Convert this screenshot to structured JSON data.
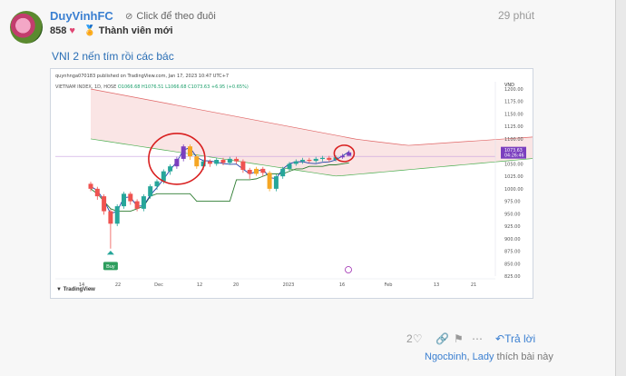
{
  "post": {
    "username": "DuyVinhFC",
    "follow_label": "Click để theo đuôi",
    "time": "29 phút",
    "points": "858",
    "member_title": "Thành viên mới",
    "text": "VNI 2 nến tím rồi các bác"
  },
  "chart": {
    "header": "quynhnga070183 published on TradingView.com, Jan 17, 2023 10:47 UTC+7",
    "symbol": "VIETNAM INDEX, 1D, HOSE",
    "ohlc": "O1066.68 H1076.51 L1066.68 C1073.63 +6.95 (+0.65%)",
    "currency": "VND",
    "price_tag": "1073.63",
    "time_tag": "04:26:46",
    "buy_label": "Buy",
    "brand": "TradingView",
    "y_ticks": [
      "1200.00",
      "1175.00",
      "1150.00",
      "1125.00",
      "1100.00",
      "1075.00",
      "1050.00",
      "1025.00",
      "1000.00",
      "975.00",
      "950.00",
      "925.00",
      "900.00",
      "875.00",
      "850.00",
      "825.00"
    ],
    "x_ticks": [
      "14",
      "22",
      "Dec",
      "12",
      "20",
      "2023",
      "16",
      "Feb",
      "13",
      "21"
    ],
    "colors": {
      "up": "#26a69a",
      "down": "#ef5350",
      "highlight": "#7b3fbf",
      "marker": "#d92020"
    }
  },
  "chart_data": {
    "type": "candlestick",
    "title": "VIETNAM INDEX, 1D, HOSE",
    "ylabel": "VND",
    "ylim": [
      825,
      1200
    ],
    "candles": [
      {
        "o": 1010,
        "c": 1000,
        "l": 995
      },
      {
        "o": 1000,
        "c": 985,
        "l": 978
      },
      {
        "o": 985,
        "c": 955,
        "l": 948
      },
      {
        "o": 955,
        "c": 930,
        "l": 880
      },
      {
        "o": 930,
        "c": 965,
        "l": 925
      },
      {
        "o": 965,
        "c": 990,
        "l": 960
      },
      {
        "o": 990,
        "c": 975,
        "l": 968
      },
      {
        "o": 975,
        "c": 960,
        "l": 955
      },
      {
        "o": 960,
        "c": 985,
        "l": 955
      },
      {
        "o": 985,
        "c": 1005,
        "l": 980
      },
      {
        "o": 1005,
        "c": 1015,
        "l": 998
      },
      {
        "o": 1015,
        "c": 1035,
        "l": 1010
      },
      {
        "o": 1035,
        "c": 1045,
        "l": 1028
      },
      {
        "o": 1045,
        "c": 1060,
        "l": 1040
      },
      {
        "o": 1060,
        "c": 1085,
        "l": 1055
      },
      {
        "o": 1085,
        "c": 1065,
        "l": 1058
      },
      {
        "o": 1065,
        "c": 1045,
        "l": 1040
      },
      {
        "o": 1045,
        "c": 1055,
        "l": 1038
      },
      {
        "o": 1055,
        "c": 1050,
        "l": 1044
      },
      {
        "o": 1050,
        "c": 1058,
        "l": 1046
      },
      {
        "o": 1058,
        "c": 1052,
        "l": 1047
      },
      {
        "o": 1052,
        "c": 1060,
        "l": 1048
      },
      {
        "o": 1060,
        "c": 1055,
        "l": 1050
      },
      {
        "o": 1055,
        "c": 1038,
        "l": 1032
      },
      {
        "o": 1038,
        "c": 1030,
        "l": 1020
      },
      {
        "o": 1030,
        "c": 1040,
        "l": 1026
      },
      {
        "o": 1040,
        "c": 1032,
        "l": 1025
      },
      {
        "o": 1032,
        "c": 1000,
        "l": 995
      },
      {
        "o": 1000,
        "c": 1025,
        "l": 995
      },
      {
        "o": 1025,
        "c": 1040,
        "l": 1020
      },
      {
        "o": 1040,
        "c": 1050,
        "l": 1036
      },
      {
        "o": 1050,
        "c": 1055,
        "l": 1046
      },
      {
        "o": 1055,
        "c": 1058,
        "l": 1050
      },
      {
        "o": 1058,
        "c": 1056,
        "l": 1052
      },
      {
        "o": 1056,
        "c": 1060,
        "l": 1052
      },
      {
        "o": 1060,
        "c": 1062,
        "l": 1055
      },
      {
        "o": 1062,
        "c": 1058,
        "l": 1054
      },
      {
        "o": 1058,
        "c": 1063,
        "l": 1055
      },
      {
        "o": 1063,
        "c": 1066,
        "l": 1060
      },
      {
        "o": 1066,
        "c": 1073,
        "l": 1066
      }
    ],
    "current_price": 1073.63
  }
}
